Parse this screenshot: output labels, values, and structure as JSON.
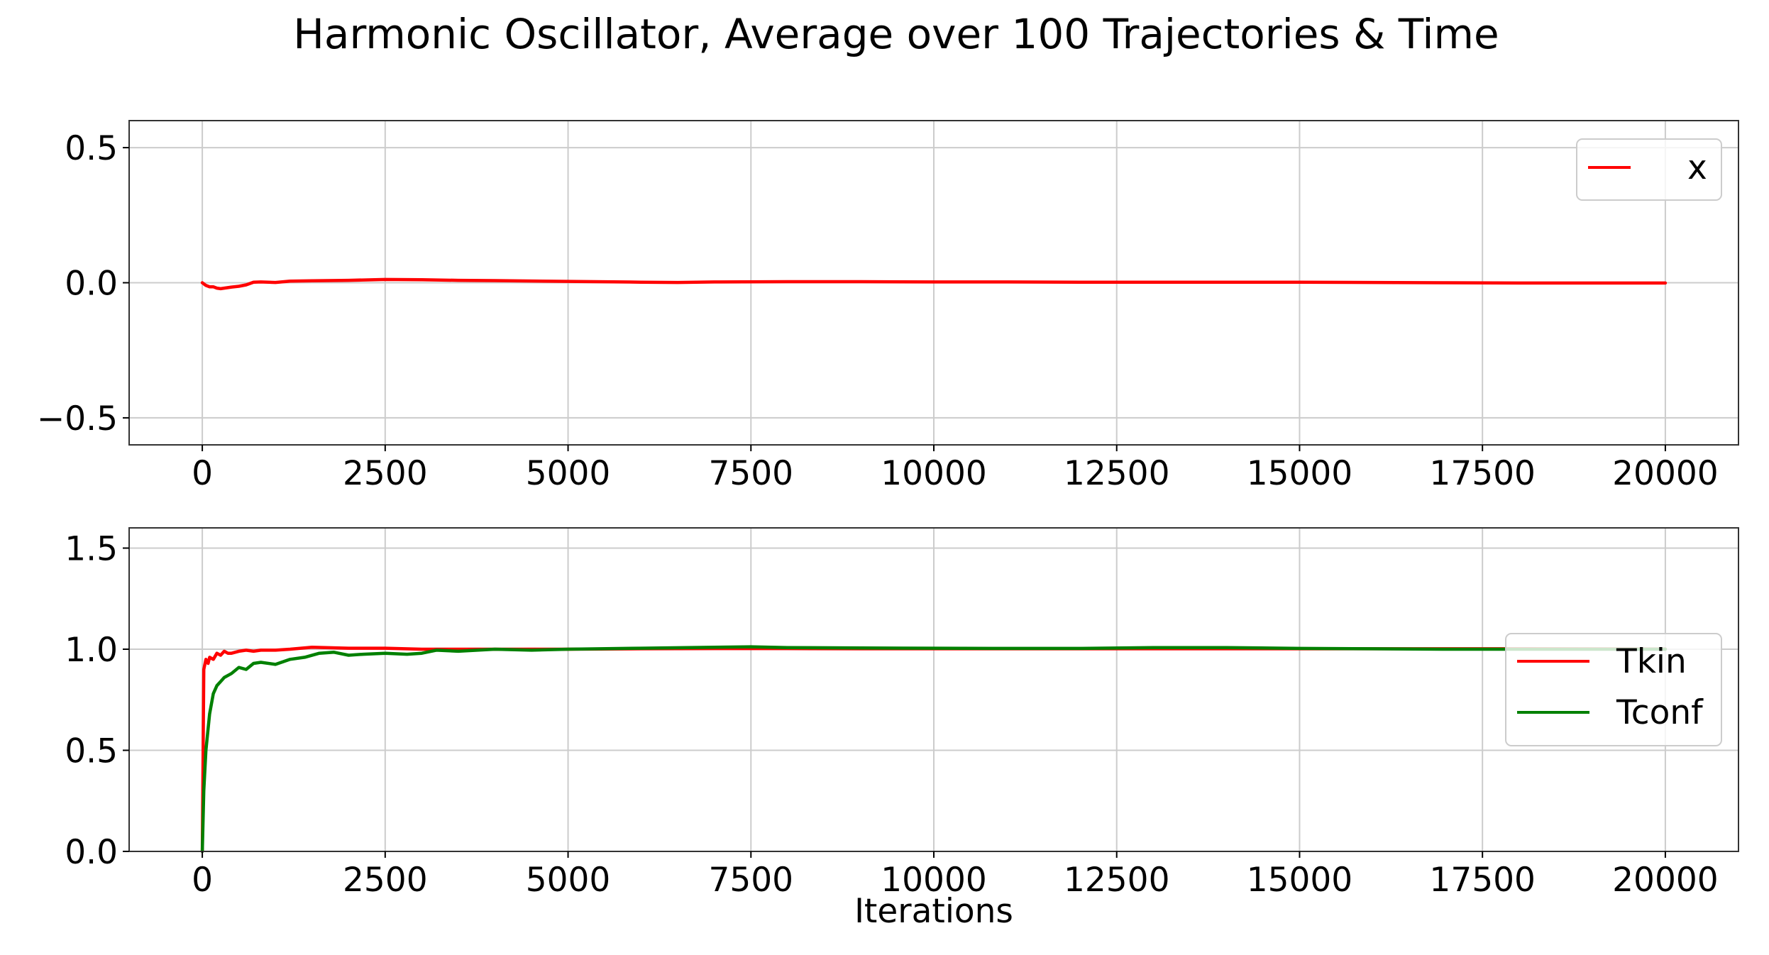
{
  "title": "Harmonic Oscillator, Average over 100 Trajectories & Time",
  "colors": {
    "red": "#ff0000",
    "green": "#008000",
    "grid": "#cccccc",
    "frame": "#333333"
  },
  "chart_data": [
    {
      "type": "line",
      "title": "",
      "xlabel": "",
      "ylabel": "",
      "xlim": [
        -1000,
        21000
      ],
      "ylim": [
        -0.6,
        0.6
      ],
      "xticks": [
        0,
        2500,
        5000,
        7500,
        10000,
        12500,
        15000,
        17500,
        20000
      ],
      "xtick_labels": [
        "0",
        "2500",
        "5000",
        "7500",
        "10000",
        "12500",
        "15000",
        "17500",
        "20000"
      ],
      "yticks": [
        -0.5,
        0.0,
        0.5
      ],
      "ytick_labels": [
        "−0.5",
        "0.0",
        "0.5"
      ],
      "grid": true,
      "legend": "top-right",
      "series": [
        {
          "name": "x",
          "color": "#ff0000",
          "x": [
            0,
            50,
            100,
            150,
            200,
            250,
            300,
            400,
            500,
            600,
            700,
            800,
            1000,
            1200,
            1500,
            2000,
            2500,
            3000,
            3500,
            4000,
            5000,
            6000,
            6500,
            7000,
            8000,
            9000,
            10000,
            11000,
            12000,
            13000,
            14000,
            15000,
            16000,
            17000,
            18000,
            19000,
            20000
          ],
          "y": [
            0.0,
            -0.01,
            -0.015,
            -0.015,
            -0.02,
            -0.022,
            -0.02,
            -0.016,
            -0.013,
            -0.008,
            0.002,
            0.003,
            0.001,
            0.006,
            0.007,
            0.009,
            0.012,
            0.011,
            0.009,
            0.008,
            0.005,
            0.002,
            0.001,
            0.003,
            0.004,
            0.004,
            0.003,
            0.003,
            0.002,
            0.002,
            0.002,
            0.002,
            0.001,
            0.0,
            -0.001,
            -0.001,
            -0.001
          ]
        }
      ]
    },
    {
      "type": "line",
      "title": "",
      "xlabel": "Iterations",
      "ylabel": "",
      "xlim": [
        -1000,
        21000
      ],
      "ylim": [
        0.0,
        1.6
      ],
      "xticks": [
        0,
        2500,
        5000,
        7500,
        10000,
        12500,
        15000,
        17500,
        20000
      ],
      "xtick_labels": [
        "0",
        "2500",
        "5000",
        "7500",
        "10000",
        "12500",
        "15000",
        "17500",
        "20000"
      ],
      "yticks": [
        0.0,
        0.5,
        1.0,
        1.5
      ],
      "ytick_labels": [
        "0.0",
        "0.5",
        "1.0",
        "1.5"
      ],
      "grid": true,
      "legend": "center-right",
      "series": [
        {
          "name": "Tkin",
          "color": "#ff0000",
          "x": [
            0,
            20,
            50,
            80,
            100,
            150,
            200,
            250,
            300,
            350,
            400,
            500,
            600,
            700,
            800,
            1000,
            1200,
            1500,
            2000,
            2500,
            3000,
            4000,
            5000,
            6000,
            7000,
            8000,
            9000,
            10000,
            12000,
            14000,
            16000,
            18000,
            20000
          ],
          "y": [
            0.0,
            0.9,
            0.95,
            0.93,
            0.96,
            0.95,
            0.98,
            0.97,
            0.99,
            0.98,
            0.98,
            0.99,
            0.995,
            0.99,
            0.995,
            0.995,
            1.0,
            1.01,
            1.005,
            1.005,
            1.0,
            1.0,
            1.0,
            1.002,
            1.003,
            1.003,
            1.002,
            1.002,
            1.002,
            1.002,
            1.002,
            1.002,
            1.001
          ]
        },
        {
          "name": "Tconf",
          "color": "#008000",
          "x": [
            0,
            20,
            50,
            100,
            150,
            200,
            250,
            300,
            400,
            500,
            600,
            700,
            800,
            1000,
            1200,
            1400,
            1600,
            1800,
            2000,
            2200,
            2500,
            2800,
            3000,
            3200,
            3500,
            4000,
            4500,
            5000,
            6000,
            7000,
            7500,
            8000,
            9000,
            10000,
            11000,
            12000,
            13000,
            14000,
            15000,
            16000,
            17000,
            18000,
            19000,
            20000
          ],
          "y": [
            0.0,
            0.3,
            0.5,
            0.68,
            0.78,
            0.82,
            0.84,
            0.86,
            0.88,
            0.91,
            0.9,
            0.93,
            0.935,
            0.925,
            0.95,
            0.96,
            0.98,
            0.985,
            0.97,
            0.975,
            0.98,
            0.975,
            0.98,
            0.995,
            0.99,
            1.0,
            0.995,
            1.0,
            1.005,
            1.01,
            1.012,
            1.008,
            1.006,
            1.005,
            1.004,
            1.004,
            1.008,
            1.008,
            1.004,
            1.002,
            1.0,
            1.0,
            1.0,
            1.0
          ]
        }
      ]
    }
  ]
}
